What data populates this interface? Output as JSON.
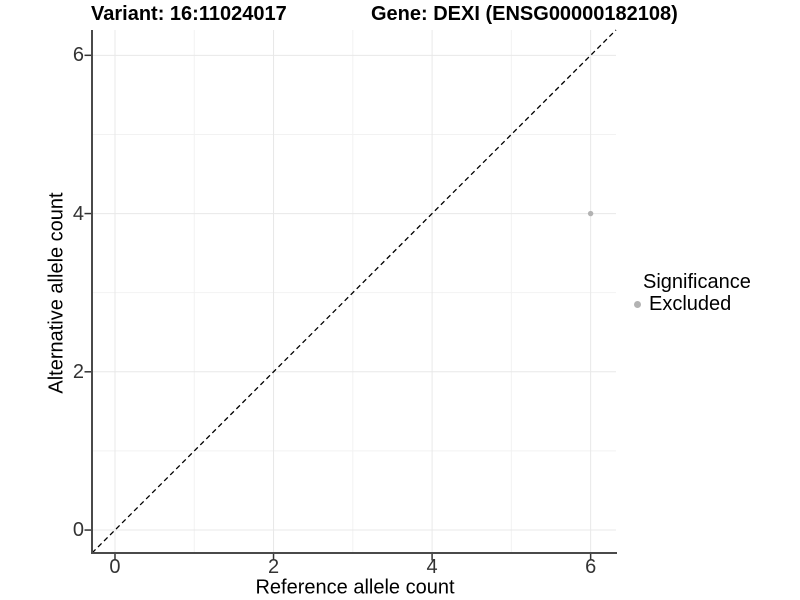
{
  "figure": {
    "titles": {
      "left": "Variant: 16:11024017",
      "right": "Gene: DEXI (ENSG00000182108)"
    },
    "legend": {
      "title": "Significance",
      "items": [
        {
          "label": "Excluded",
          "color": "#b3b3b3"
        }
      ]
    },
    "colors": {
      "background": "#ffffff",
      "point": "#b3b3b3",
      "axis_line": "#4a4a4a",
      "tick_mark": "#333333",
      "tick_label": "#333333",
      "grid_major": "#e8e8e8",
      "grid_minor": "#f2f2f2",
      "reference_line": "#000000",
      "title_text": "#000000"
    }
  },
  "chart_data": {
    "type": "scatter",
    "title": "Variant: 16:11024017 | Gene: DEXI (ENSG00000182108)",
    "xlabel": "Reference allele count",
    "ylabel": "Alternative allele count",
    "xlim": [
      -0.29,
      6.32
    ],
    "ylim": [
      -0.29,
      6.32
    ],
    "x_ticks": [
      0,
      2,
      4,
      6
    ],
    "y_ticks": [
      0,
      2,
      4,
      6
    ],
    "x_minor_ticks": [
      1,
      3,
      5
    ],
    "y_minor_ticks": [
      1,
      3,
      5
    ],
    "grid": "on",
    "legend_position": "right",
    "series": [
      {
        "name": "Excluded",
        "color": "#b3b3b3",
        "points": [
          [
            6,
            4
          ]
        ]
      }
    ],
    "annotations": [
      {
        "type": "line",
        "style": "dashed",
        "equation": "y = x",
        "label": "identity reference line",
        "color": "#000000"
      }
    ]
  }
}
